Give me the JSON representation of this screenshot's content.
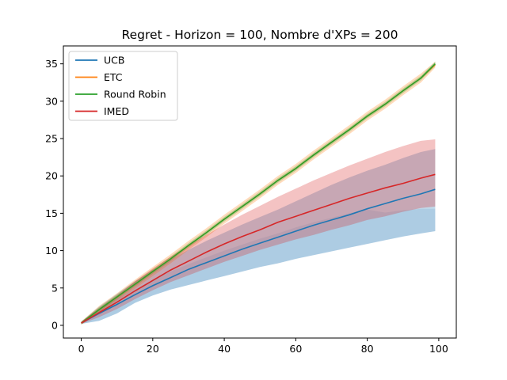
{
  "chart_data": {
    "type": "line",
    "title": "Regret - Horizon = 100, Nombre d'XPs = 200",
    "xlabel": "",
    "ylabel": "",
    "xlim": [
      -5,
      104.9
    ],
    "ylim": [
      -1.7,
      37.4
    ],
    "xticks": [
      0,
      20,
      40,
      60,
      80,
      100
    ],
    "yticks": [
      0,
      5,
      10,
      15,
      20,
      25,
      30,
      35
    ],
    "grid": false,
    "legend_position": "top-left",
    "x": [
      0,
      5,
      10,
      15,
      20,
      25,
      30,
      35,
      40,
      45,
      50,
      55,
      60,
      65,
      70,
      75,
      80,
      85,
      90,
      95,
      99
    ],
    "series": [
      {
        "name": "UCB",
        "color": "#1f77b4",
        "values": [
          0.3,
          1.6,
          2.8,
          4.1,
          5.3,
          6.4,
          7.5,
          8.4,
          9.3,
          10.2,
          11.0,
          11.8,
          12.6,
          13.4,
          14.1,
          14.8,
          15.6,
          16.3,
          17.0,
          17.6,
          18.2
        ],
        "band_upper": [
          0.5,
          2.5,
          4.2,
          5.9,
          7.4,
          8.8,
          10.1,
          11.3,
          12.4,
          13.5,
          14.5,
          15.5,
          16.6,
          17.7,
          18.8,
          19.8,
          20.7,
          21.5,
          22.4,
          23.2,
          23.6
        ],
        "band_lower": [
          0.2,
          0.6,
          1.6,
          3.0,
          4.0,
          4.8,
          5.4,
          6.0,
          6.6,
          7.2,
          7.8,
          8.3,
          8.9,
          9.4,
          9.9,
          10.4,
          10.9,
          11.4,
          11.9,
          12.3,
          12.6
        ],
        "band2_upper": [
          0.4,
          2.1,
          3.6,
          4.8,
          6.1,
          7.2,
          8.2,
          9.1,
          10.0,
          10.8,
          11.6,
          12.3,
          13.1,
          13.8,
          14.4,
          15.0,
          15.5,
          15.1,
          15.4,
          15.6,
          15.6
        ]
      },
      {
        "name": "ETC",
        "color": "#ff7f0e",
        "values": [
          0.3,
          2.1,
          3.8,
          5.5,
          7.2,
          8.9,
          10.7,
          12.4,
          14.2,
          15.9,
          17.6,
          19.4,
          21.0,
          22.8,
          24.5,
          26.2,
          28.0,
          29.6,
          31.4,
          33.1,
          34.9
        ],
        "band_upper": [
          0.5,
          2.6,
          4.3,
          6.1,
          7.8,
          9.5,
          11.3,
          13.0,
          14.8,
          16.5,
          18.2,
          20.0,
          21.6,
          23.4,
          25.1,
          26.8,
          28.6,
          30.2,
          32.0,
          33.7,
          35.3
        ],
        "band_lower": [
          0.1,
          1.6,
          3.3,
          4.9,
          6.6,
          8.3,
          10.1,
          11.8,
          13.6,
          15.3,
          17.0,
          18.8,
          20.4,
          22.2,
          23.9,
          25.6,
          27.4,
          29.0,
          30.8,
          32.5,
          34.5
        ]
      },
      {
        "name": "Round Robin",
        "color": "#2ca02c",
        "values": [
          0.3,
          2.1,
          3.8,
          5.5,
          7.2,
          8.9,
          10.7,
          12.4,
          14.2,
          15.9,
          17.6,
          19.4,
          21.0,
          22.8,
          24.5,
          26.2,
          28.0,
          29.6,
          31.4,
          33.1,
          35.0
        ],
        "band_upper": [
          0.5,
          2.4,
          4.1,
          5.8,
          7.5,
          9.2,
          11.0,
          12.7,
          14.5,
          16.2,
          17.9,
          19.7,
          21.3,
          23.1,
          24.8,
          26.5,
          28.3,
          29.9,
          31.7,
          33.4,
          35.3
        ],
        "band_lower": [
          0.1,
          1.8,
          3.5,
          5.2,
          6.9,
          8.6,
          10.4,
          12.1,
          13.9,
          15.6,
          17.3,
          19.1,
          20.7,
          22.5,
          24.2,
          25.9,
          27.7,
          29.3,
          31.1,
          32.8,
          34.7
        ]
      },
      {
        "name": "IMED",
        "color": "#d62728",
        "values": [
          0.3,
          1.7,
          3.1,
          4.6,
          6.0,
          7.4,
          8.6,
          9.8,
          10.9,
          11.9,
          12.8,
          13.8,
          14.6,
          15.4,
          16.2,
          17.0,
          17.7,
          18.4,
          19.0,
          19.7,
          20.2
        ],
        "band_upper": [
          0.5,
          2.3,
          4.0,
          5.9,
          7.6,
          9.2,
          10.7,
          12.1,
          13.5,
          14.8,
          16.0,
          17.2,
          18.3,
          19.4,
          20.4,
          21.4,
          22.3,
          23.2,
          24.0,
          24.7,
          24.9
        ],
        "band_lower": [
          0.2,
          1.1,
          2.2,
          3.5,
          4.7,
          5.8,
          6.7,
          7.6,
          8.5,
          9.3,
          10.1,
          10.8,
          11.5,
          12.1,
          12.8,
          13.4,
          14.1,
          14.6,
          15.2,
          15.7,
          15.9
        ]
      }
    ]
  }
}
